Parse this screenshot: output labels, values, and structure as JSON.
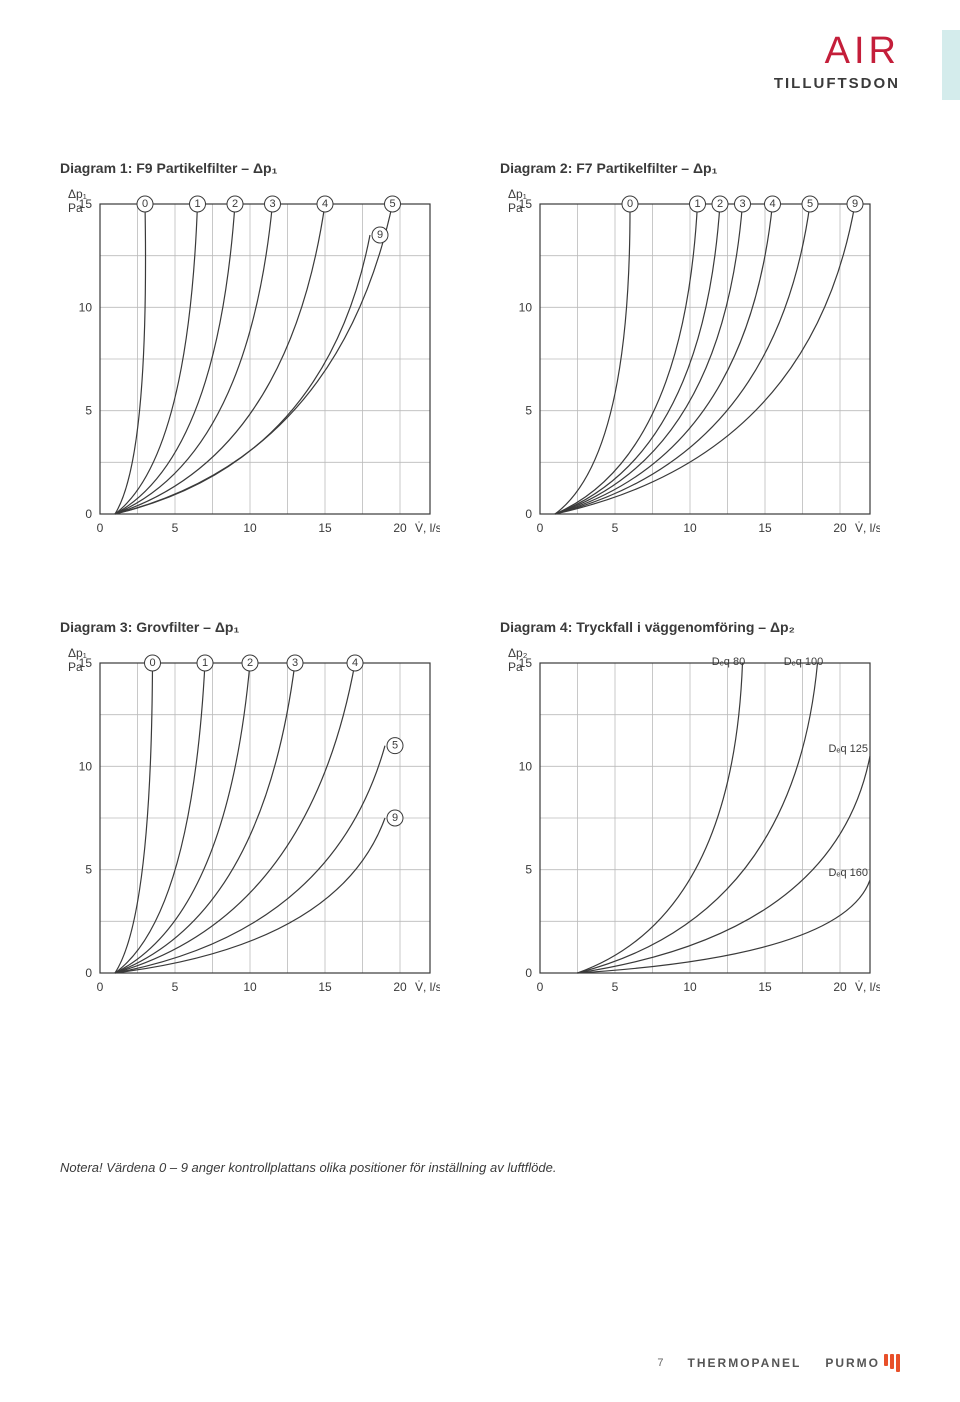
{
  "header": {
    "title": "AIR",
    "subtitle": "TILLUFTSDON",
    "title_color": "#c41e3a"
  },
  "footer": {
    "page": "7",
    "brand1": "THERMOPANEL",
    "brand2": "PURMO"
  },
  "note": "Notera! Värdena 0 – 9 anger kontrollplattans olika positioner för inställning av luftflöde.",
  "axis": {
    "x_label": "V̇, l/s",
    "y_label_p1": "Δp₁",
    "y_label_p2": "Δp₂",
    "y_unit": "Pa"
  },
  "chart_common": {
    "xlim": [
      0,
      22
    ],
    "ylim": [
      0,
      15
    ],
    "xticks": [
      0,
      5,
      10,
      15,
      20
    ],
    "yticks": [
      0,
      5,
      10,
      15
    ],
    "xgrid": [
      0,
      2.5,
      5,
      7.5,
      10,
      12.5,
      15,
      17.5,
      20,
      22
    ],
    "ygrid": [
      0,
      2.5,
      5,
      7.5,
      10,
      12.5,
      15
    ],
    "grid_color": "#bbbbbb",
    "frame_color": "#3a3a3a",
    "curve_color": "#3a3a3a",
    "bg": "#ffffff",
    "font_size": 12
  },
  "diagrams": [
    {
      "id": "d1",
      "title": "Diagram 1: F9 Partikelfilter – Δp₁",
      "ylabel": "p1",
      "curves": [
        {
          "m": "0",
          "x15": 3.0,
          "bend": 1.0,
          "mpos": "top"
        },
        {
          "m": "1",
          "x15": 6.5,
          "bend": 1.3,
          "mpos": "top"
        },
        {
          "m": "2",
          "x15": 9.0,
          "bend": 1.6,
          "mpos": "top"
        },
        {
          "m": "3",
          "x15": 11.5,
          "bend": 2.0,
          "mpos": "top"
        },
        {
          "m": "4",
          "x15": 15.0,
          "bend": 2.4,
          "mpos": "top"
        },
        {
          "m": "5",
          "x15": 19.5,
          "bend": 2.8,
          "mpos": "top"
        },
        {
          "m": "9",
          "xend": 18,
          "yend": 13.5,
          "bend": 3.0,
          "mpos": "end"
        }
      ]
    },
    {
      "id": "d2",
      "title": "Diagram 2: F7 Partikelfilter – Δp₁",
      "ylabel": "p1",
      "curves": [
        {
          "m": "0",
          "x15": 6.0,
          "bend": 1.8,
          "mpos": "top"
        },
        {
          "m": "1",
          "x15": 10.5,
          "bend": 2.4,
          "mpos": "top"
        },
        {
          "m": "2",
          "x15": 12.0,
          "bend": 2.7,
          "mpos": "top"
        },
        {
          "m": "3",
          "x15": 13.5,
          "bend": 3.0,
          "mpos": "top"
        },
        {
          "m": "4",
          "x15": 15.5,
          "bend": 3.3,
          "mpos": "top"
        },
        {
          "m": "5",
          "x15": 18.0,
          "bend": 3.6,
          "mpos": "top"
        },
        {
          "m": "9",
          "x15": 21.0,
          "bend": 4.0,
          "mpos": "top"
        }
      ]
    },
    {
      "id": "d3",
      "title": "Diagram 3: Grovfilter – Δp₁",
      "ylabel": "p1",
      "curves": [
        {
          "m": "0",
          "x15": 3.5,
          "bend": 0.8,
          "mpos": "top"
        },
        {
          "m": "1",
          "x15": 7.0,
          "bend": 1.2,
          "mpos": "top"
        },
        {
          "m": "2",
          "x15": 10.0,
          "bend": 1.6,
          "mpos": "top"
        },
        {
          "m": "3",
          "x15": 13.0,
          "bend": 2.0,
          "mpos": "top"
        },
        {
          "m": "4",
          "x15": 17.0,
          "bend": 2.5,
          "mpos": "top"
        },
        {
          "m": "5",
          "xend": 19,
          "yend": 11,
          "bend": 2.8,
          "mpos": "end"
        },
        {
          "m": "9",
          "xend": 19,
          "yend": 7.5,
          "bend": 3.2,
          "mpos": "end"
        }
      ]
    },
    {
      "id": "d4",
      "title": "Diagram 4: Tryckfall i väggenomföring – Δp₂",
      "ylabel": "p2",
      "curves": [
        {
          "label": "Dₑq 80",
          "x15": 13.5,
          "bend": 3.2,
          "lpos": "top"
        },
        {
          "label": "Dₑq 100",
          "x15": 18.5,
          "bend": 4.0,
          "lpos": "top"
        },
        {
          "label": "Dₑq 125",
          "xend": 22,
          "yend": 10.5,
          "bend": 4.5,
          "lpos": "end"
        },
        {
          "label": "Dₑq 160",
          "xend": 22,
          "yend": 4.5,
          "bend": 5.0,
          "lpos": "end"
        }
      ]
    }
  ]
}
